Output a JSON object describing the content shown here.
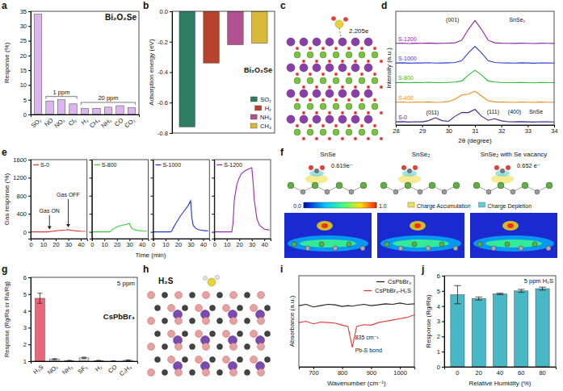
{
  "chart_data": [
    {
      "type": "bar",
      "panel_label": "a",
      "title": "Bi₂O₂Se",
      "y_label": "Response (%)",
      "categories": [
        "SO₂",
        "NO",
        "NO₂",
        "Cl₂",
        "H₂",
        "CH₄",
        "NH₃",
        "CO",
        "CO₂"
      ],
      "values": [
        34,
        4.6,
        5,
        3.6,
        2,
        2.1,
        2.5,
        3,
        2.3
      ],
      "color": "#dcb5ef",
      "ylim": [
        0,
        35
      ],
      "yticks": [
        0,
        5,
        10,
        15,
        20,
        25,
        30,
        35
      ],
      "annotations": [
        {
          "text": "1 ppm",
          "categories": [
            "NO",
            "NO₂",
            "Cl₂"
          ]
        },
        {
          "text": "20 ppm",
          "categories": [
            "H₂",
            "CH₄",
            "NH₃",
            "CO",
            "CO₂"
          ]
        }
      ]
    },
    {
      "type": "bar",
      "panel_label": "b",
      "title": "Bi₂O₂Se",
      "y_label": "Adsorption energy (eV)",
      "categories": [
        "SO₂",
        "H₂",
        "NH₃",
        "CH₄"
      ],
      "values": [
        -0.76,
        -0.34,
        -0.22,
        -0.21
      ],
      "colors": [
        "#2e7d62",
        "#b8432c",
        "#b0528f",
        "#d8b93a"
      ],
      "ylim": [
        -0.8,
        0
      ],
      "yticks": [
        -0.8,
        -0.6,
        -0.4,
        -0.2,
        {
          "value": 0,
          "label": "0.0"
        }
      ],
      "tick_labels": "y",
      "legend": "lower right"
    },
    {
      "type": "diagram",
      "panel_label": "c",
      "annotations": [
        "2.205e"
      ]
    },
    {
      "type": "line",
      "panel_label": "d",
      "x_label": "2θ (degree)",
      "y_label": "Intensity (a.u.)",
      "x": [
        28,
        28.25,
        28.5,
        28.75,
        29,
        29.25,
        29.5,
        29.75,
        30,
        30.25,
        30.5,
        30.75,
        31,
        31.25,
        31.5,
        31.75,
        32,
        32.25,
        32.5,
        32.75,
        33,
        33.25,
        33.5,
        33.75,
        34
      ],
      "series": [
        {
          "name": "S-1200",
          "color": "#8e24aa",
          "values": [
            7.9,
            7.92,
            7.88,
            7.91,
            7.9,
            7.93,
            7.89,
            7.9,
            7.92,
            7.95,
            8.2,
            9.24,
            10.1,
            9.24,
            8.2,
            7.95,
            7.91,
            7.9,
            7.89,
            7.92,
            7.9,
            7.88,
            7.91,
            7.9,
            7.89
          ]
        },
        {
          "name": "S-1000",
          "color": "#2f3fd8",
          "values": [
            6.0,
            6.02,
            5.98,
            6.01,
            6.0,
            6.03,
            5.99,
            6.0,
            6.02,
            6.05,
            6.22,
            6.98,
            7.6,
            6.98,
            6.22,
            6.05,
            6.01,
            6.0,
            5.99,
            6.02,
            6.0,
            5.98,
            6.01,
            6.0,
            5.99
          ]
        },
        {
          "name": "S-800",
          "color": "#2eb82e",
          "values": [
            4.1,
            4.12,
            4.08,
            4.11,
            4.1,
            4.13,
            4.09,
            4.1,
            4.12,
            4.15,
            4.26,
            4.83,
            5.3,
            4.83,
            4.26,
            4.15,
            4.11,
            4.1,
            4.09,
            4.12,
            4.1,
            4.08,
            4.11,
            4.1,
            4.09
          ]
        },
        {
          "name": "S-400",
          "color": "#f08c1a",
          "values": [
            2.2,
            2.22,
            2.18,
            2.21,
            2.2,
            2.23,
            2.19,
            2.2,
            2.27,
            2.5,
            2.9,
            2.98,
            3.27,
            2.81,
            2.34,
            2.23,
            2.21,
            2.2,
            2.19,
            2.22,
            2.2,
            2.18,
            2.21,
            2.2,
            2.19
          ]
        },
        {
          "name": "S-0",
          "color": "#3a2a8c",
          "values": [
            0.3,
            0.32,
            0.28,
            0.31,
            0.3,
            0.42,
            0.7,
            0.42,
            0.35,
            0.85,
            1.2,
            1.2,
            1.5,
            0.85,
            0.45,
            0.6,
            0.4,
            0.31,
            0.3,
            0.32,
            0.3,
            0.28,
            0.31,
            0.3,
            0.29
          ]
        }
      ],
      "xlim": [
        28,
        34
      ],
      "xticks": [
        28,
        29,
        30,
        31,
        32,
        33,
        34
      ],
      "ylim": [
        0,
        11
      ],
      "tick_labels": "x",
      "annotations": [
        {
          "text": "(001)",
          "x": 29.9,
          "y": 9.95
        },
        {
          "text": "SnSe₂",
          "x": 32.3,
          "y": 9.95
        },
        {
          "text": "(011)",
          "x": 29.15,
          "y": 1.05
        },
        {
          "text": "(111)",
          "x": 31.45,
          "y": 1.1
        },
        {
          "text": "(400)",
          "x": 32.25,
          "y": 1.1
        },
        {
          "text": "SnSe",
          "x": 33.05,
          "y": 1.1
        }
      ]
    },
    {
      "type": "line",
      "panel_label": "e",
      "x_label": "Time (min)",
      "y_label": "Gas response (%)",
      "x": [
        0,
        5,
        10,
        14,
        15,
        16,
        18,
        20,
        22,
        25,
        28,
        30,
        31,
        32,
        34,
        36,
        40,
        44
      ],
      "series": [
        {
          "name": "S-0",
          "color": "#e53935",
          "values": [
            0,
            0,
            0,
            0,
            2,
            8,
            15,
            22,
            28,
            35,
            42,
            48,
            42,
            35,
            28,
            22,
            15,
            12
          ]
        },
        {
          "name": "S-800",
          "color": "#33cc33",
          "values": [
            0,
            0,
            0,
            0,
            10,
            50,
            80,
            110,
            130,
            150,
            170,
            185,
            120,
            80,
            50,
            35,
            20,
            15
          ]
        },
        {
          "name": "S-1000",
          "color": "#2233dd",
          "values": [
            0,
            0,
            0,
            0,
            20,
            80,
            180,
            270,
            360,
            470,
            580,
            690,
            300,
            150,
            80,
            50,
            30,
            20
          ]
        },
        {
          "name": "S-1200",
          "color": "#9c27b0",
          "values": [
            0,
            0,
            0,
            0,
            200,
            700,
            1050,
            1200,
            1300,
            1360,
            1400,
            1420,
            1100,
            700,
            300,
            150,
            60,
            40
          ]
        }
      ],
      "xlim": [
        0,
        45
      ],
      "xticks": [
        0,
        10,
        20,
        30,
        40
      ],
      "ylim": [
        -150,
        1600
      ],
      "yticks": [
        0,
        400,
        800,
        1200,
        1600
      ],
      "annotations": [
        {
          "text": "Gas ON",
          "x": 15
        },
        {
          "text": "Gas OFF",
          "x": 30
        }
      ]
    },
    {
      "type": "diagram",
      "panel_label": "f",
      "titles": [
        "SnSe",
        "SnSe₂",
        "SnSe₂ with Se vacancy"
      ],
      "annotations": [
        {
          "text": "0.619e⁻",
          "column": "SnSe"
        },
        {
          "text": "0.652 e⁻",
          "column": "SnSe₂ with Se vacancy"
        }
      ],
      "legend_entries": [
        "Charge Accumulation",
        "Charge Depletion"
      ],
      "colorbar": {
        "range": [
          0,
          1
        ],
        "ticks": [
          {
            "value": 0,
            "label": "0.0"
          },
          {
            "value": 1,
            "label": "1.0"
          }
        ]
      }
    },
    {
      "type": "bar",
      "panel_label": "g",
      "title": "CsPbBr₃",
      "subtitle": "5 ppm",
      "y_label": "Response (Rg/Ra or Ra/Rg)",
      "categories": [
        "H₂S",
        "NO₂",
        "NH₃",
        "SF₆",
        "H₂",
        "CO",
        "C₂H₄"
      ],
      "values": [
        4.75,
        1.12,
        1.03,
        1.2,
        1.03,
        1.0,
        1.05
      ],
      "errors": [
        0.3,
        0.03,
        0.02,
        0.04,
        0.02,
        0.02,
        0.03
      ],
      "colors": [
        "#e8667a",
        "#dddddd",
        "#dddddd",
        "#dddddd",
        "#dddddd",
        "#dddddd",
        "#dddddd"
      ],
      "ylim": [
        1,
        6
      ],
      "yticks": [
        1,
        2,
        3,
        4,
        5,
        6
      ]
    },
    {
      "type": "diagram",
      "panel_label": "h",
      "annotations": [
        "H₂S"
      ]
    },
    {
      "type": "line",
      "panel_label": "i",
      "x_label": "Wavenumber (cm⁻¹)",
      "y_label": "Absorbance (a.u.)",
      "x": [
        650,
        675,
        700,
        725,
        750,
        775,
        800,
        820,
        835,
        850,
        875,
        900,
        925,
        950,
        975,
        1000,
        1025,
        1050
      ],
      "series": [
        {
          "name": "CsPbBr₃",
          "color": "#222222",
          "values": [
            4.35,
            4.4,
            4.3,
            4.35,
            4.4,
            4.38,
            4.32,
            4.35,
            4.33,
            4.36,
            4.4,
            4.35,
            4.38,
            4.42,
            4.4,
            4.45,
            4.4,
            4.42
          ]
        },
        {
          "name": "CsPbBr₃-H₂S",
          "color": "#e53935",
          "values": [
            3.7,
            3.75,
            3.65,
            3.72,
            3.7,
            3.68,
            3.6,
            3.55,
            2.75,
            3.55,
            3.62,
            3.6,
            3.7,
            3.75,
            3.8,
            3.85,
            3.9,
            4.0
          ]
        }
      ],
      "xlim": [
        650,
        1050
      ],
      "xticks": [
        700,
        800,
        900,
        1000
      ],
      "ylim": [
        2,
        5.5
      ],
      "tick_labels": "x",
      "legend": "upper right",
      "annotations": [
        {
          "text": "835 cm⁻¹",
          "x": 845,
          "y": 3.05
        },
        {
          "text": "Pb-S bond",
          "x": 845,
          "y": 2.55
        }
      ]
    },
    {
      "type": "bar",
      "panel_label": "j",
      "title": "5 ppm H₂S",
      "x_label": "Relative Humidity (%)",
      "y_label": "Response (Rg/Ra)",
      "categories": [
        "0",
        "20",
        "40",
        "60",
        "80"
      ],
      "values": [
        4.75,
        4.5,
        4.8,
        5.0,
        5.15
      ],
      "errors": [
        0.6,
        0.1,
        0.05,
        0.1,
        0.1
      ],
      "color": "#49b8c6",
      "ylim": [
        0,
        6
      ],
      "yticks": [
        0,
        1,
        2,
        3,
        4,
        5,
        6
      ]
    }
  ]
}
